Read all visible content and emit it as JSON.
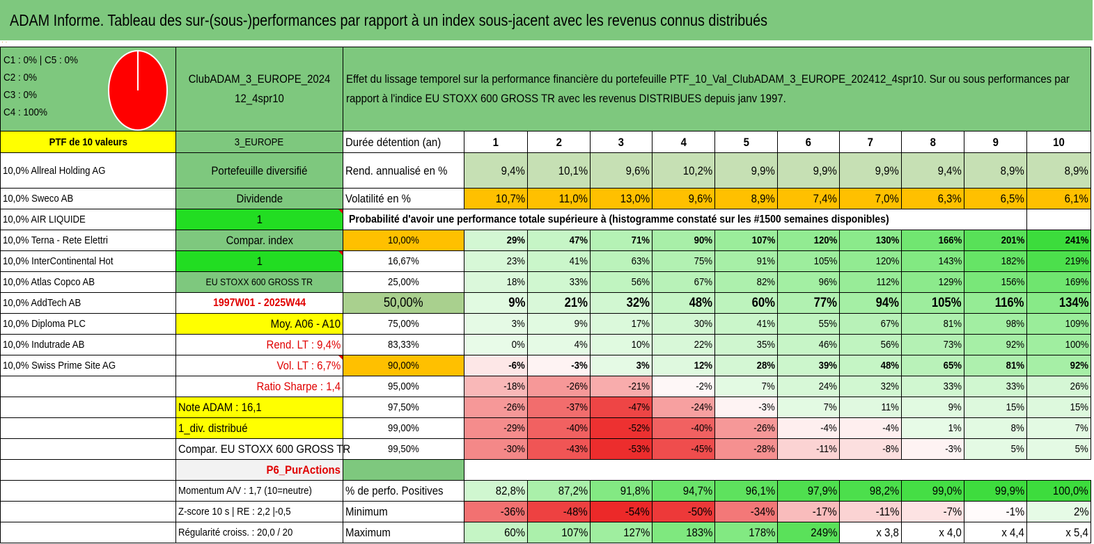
{
  "title": "ADAM Informe. Tableau des sur-(sous-)performances par rapport à un index sous-jacent avec les revenus connus distribués",
  "title_dots": "· ·",
  "legend": [
    "C1 : 0% | C5 : 0%",
    "C2 : 0%",
    "C3 : 0%",
    "C4 : 100%"
  ],
  "pie": {
    "color": "#ff0000",
    "C1": 0,
    "C2": 0,
    "C3": 0,
    "C4": 100,
    "C5": 0
  },
  "portfolio_name": "ClubADAM_3_EUROPE_202412_4spr10",
  "description": "Effet du lissage temporel sur la performance financière du portefeuille PTF_10_Val_ClubADAM_3_EUROPE_202412_4spr10. Sur ou sous performances par rapport à l'indice EU STOXX 600 GROSS TR avec les revenus DISTRIBUES depuis janv 1997.",
  "ptf_label": "PTF de 10 valeurs",
  "holdings": [
    "10,0% Allreal Holding AG",
    "10,0% Sweco AB",
    "10,0% AIR LIQUIDE",
    "10,0% Terna - Rete Elettri",
    "10,0% InterContinental Hot",
    "10,0% Atlas Copco AB",
    "10,0% AddTech AB",
    "10,0% Diploma PLC",
    "10,0% Indutrade AB",
    "10,0% Swiss Prime Site AG"
  ],
  "info": {
    "region": "3_EUROPE",
    "type": "Portefeuille diversifié",
    "dividend": "Dividende",
    "one_a": "1",
    "compar_index": "Compar. index",
    "one_b": "1",
    "index_name": "EU STOXX 600 GROSS TR",
    "period": "1997W01 - 2025W44",
    "moy": "Moy. A06 - A10",
    "rend_lt": "Rend. LT : 9,4%",
    "vol_lt": "Vol. LT : 6,7%",
    "sharpe": "Ratio Sharpe : 1,4",
    "note": "Note ADAM : 16,1",
    "div": "1_div. distribué",
    "compar_full": "Compar. EU STOXX 600 GROSS TR",
    "purac": "P6_PurActions",
    "momentum": "Momentum A/V : 1,7 (10=neutre)",
    "zscore": "Z-score 10 s | RE : 2,2 |-0,5",
    "regularite": "Régularité croiss. : 20,0 / 20"
  },
  "duration_label": "Durée détention (an)",
  "years": [
    "1",
    "2",
    "3",
    "4",
    "5",
    "6",
    "7",
    "8",
    "9",
    "10"
  ],
  "rend_label": "Rend. annualisé en %",
  "rend": [
    "9,4%",
    "10,1%",
    "9,6%",
    "10,2%",
    "9,9%",
    "9,9%",
    "9,9%",
    "9,4%",
    "8,9%",
    "8,9%"
  ],
  "vol_label": "Volatilité en %",
  "vol": [
    "10,7%",
    "11,0%",
    "13,0%",
    "9,6%",
    "8,9%",
    "7,4%",
    "7,0%",
    "6,3%",
    "6,5%",
    "6,1%"
  ],
  "prob_label": "Probabilité d'avoir une performance totale supérieure à (histogramme constaté sur les #1500 semaines disponibles)",
  "prob_rows": [
    {
      "level": "10,00%",
      "values": [
        "29%",
        "47%",
        "71%",
        "90%",
        "107%",
        "120%",
        "130%",
        "166%",
        "201%",
        "241%"
      ]
    },
    {
      "level": "16,67%",
      "values": [
        "23%",
        "41%",
        "63%",
        "75%",
        "91%",
        "105%",
        "120%",
        "143%",
        "182%",
        "219%"
      ]
    },
    {
      "level": "25,00%",
      "values": [
        "18%",
        "33%",
        "56%",
        "67%",
        "82%",
        "96%",
        "112%",
        "129%",
        "156%",
        "169%"
      ]
    },
    {
      "level": "50,00%",
      "values": [
        "9%",
        "21%",
        "32%",
        "48%",
        "60%",
        "77%",
        "94%",
        "105%",
        "116%",
        "134%"
      ]
    },
    {
      "level": "75,00%",
      "values": [
        "3%",
        "9%",
        "17%",
        "30%",
        "41%",
        "55%",
        "67%",
        "81%",
        "98%",
        "109%"
      ]
    },
    {
      "level": "83,33%",
      "values": [
        "0%",
        "4%",
        "10%",
        "22%",
        "35%",
        "46%",
        "56%",
        "73%",
        "92%",
        "100%"
      ]
    },
    {
      "level": "90,00%",
      "values": [
        "-6%",
        "-3%",
        "3%",
        "12%",
        "28%",
        "39%",
        "48%",
        "65%",
        "81%",
        "92%"
      ]
    },
    {
      "level": "95,00%",
      "values": [
        "-18%",
        "-26%",
        "-21%",
        "-2%",
        "7%",
        "24%",
        "32%",
        "33%",
        "33%",
        "26%"
      ]
    },
    {
      "level": "97,50%",
      "values": [
        "-26%",
        "-37%",
        "-47%",
        "-24%",
        "-3%",
        "7%",
        "11%",
        "9%",
        "15%",
        "15%"
      ]
    },
    {
      "level": "99,00%",
      "values": [
        "-29%",
        "-40%",
        "-52%",
        "-40%",
        "-26%",
        "-4%",
        "-4%",
        "1%",
        "8%",
        "7%"
      ]
    },
    {
      "level": "99,50%",
      "values": [
        "-30%",
        "-43%",
        "-53%",
        "-45%",
        "-28%",
        "-11%",
        "-8%",
        "-3%",
        "5%",
        "5%"
      ]
    }
  ],
  "pos_label": "% de perfo. Positives",
  "pos": [
    "82,8%",
    "87,2%",
    "91,8%",
    "94,7%",
    "96,1%",
    "97,9%",
    "98,2%",
    "99,0%",
    "99,9%",
    "100,0%"
  ],
  "min_label": "Minimum",
  "min": [
    "-36%",
    "-48%",
    "-54%",
    "-50%",
    "-34%",
    "-17%",
    "-11%",
    "-7%",
    "-1%",
    "2%"
  ],
  "max_label": "Maximum",
  "max": [
    "60%",
    "107%",
    "127%",
    "183%",
    "178%",
    "249%",
    "x 3,8",
    "x 4,0",
    "x 4,4",
    "x 5,4"
  ],
  "colors": {
    "header_green": "#7ec87e",
    "yellow": "#ffff00",
    "orange": "#ffc000",
    "bright_green": "#22dd22",
    "light_green": "#a9d08e",
    "grey": "#f2f2f2",
    "red_text": "#e00000"
  }
}
